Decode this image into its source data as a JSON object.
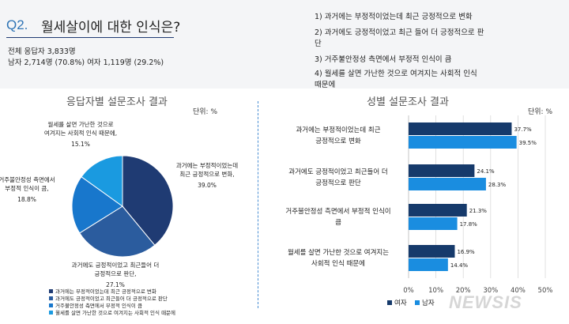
{
  "header": {
    "q_label": "Q2.",
    "q_text": "월세살이에 대한 인식은?",
    "total": "전체 응답자 3,833명",
    "gender": "남자 2,714명 (70.8%) 여자 1,119명 (29.2%)"
  },
  "options": [
    "1) 과거에는 부정적이었는데 최근 긍정적으로 변화",
    "2) 과거에도 긍정적이었고 최근 들어 더 긍정적으로 판",
    "단",
    "3) 거주불안정성 측면에서 부정적 인식이 큼",
    "4) 월세를 살면 가난한 것으로 여겨지는 사회적 인식",
    "때문에"
  ],
  "left_panel": {
    "title": "응답자별 설문조사 결과",
    "unit": "단위: %"
  },
  "right_panel": {
    "title": "성별 설문조사 결과",
    "unit": "단위: %"
  },
  "watermark": "NEWSIS",
  "colors": {
    "navy": "#1a2e5c",
    "c1": "#1f3b73",
    "c2": "#2b5c9e",
    "c3": "#1877cc",
    "c4": "#1a9ae0",
    "female": "#163a6b",
    "male": "#1a8de0"
  },
  "chart_data": [
    {
      "type": "pie",
      "title": "응답자별 설문조사 결과",
      "slices": [
        {
          "label_lines": [
            "과거에는 부정적이었는데",
            "최근 긍정적으로 변화,"
          ],
          "value": 39.0,
          "value_label": "39.0%"
        },
        {
          "label_lines": [
            "과거에도 긍정적이었고 최근들어 더",
            "긍정적으로 판단,"
          ],
          "value": 27.1,
          "value_label": "27.1%"
        },
        {
          "label_lines": [
            "거주불안정성 측면에서",
            "부정적 인식이 큼,"
          ],
          "value": 18.8,
          "value_label": "18.8%"
        },
        {
          "label_lines": [
            "월세를 살면 가난한 것으로",
            "여겨지는 사회적 인식 때문에,"
          ],
          "value": 15.1,
          "value_label": "15.1%"
        }
      ],
      "legend": [
        "과거에는 부정적이었는데 최근 긍정적으로 변화",
        "과거에도 긍정적이었고 최근들어 더 긍정적으로 판단",
        "거주불안정성 측면에서 부정적 인식이 큼",
        "월세를 살면 가난한 것으로 여겨지는 사회적 인식 때문에"
      ],
      "legend_position": "bottom"
    },
    {
      "type": "bar",
      "orientation": "horizontal",
      "title": "성별 설문조사 결과",
      "categories": [
        [
          "과거에는 부정적이었는데 최근",
          "긍정적으로 변화"
        ],
        [
          "과거에도 긍정적이었고 최근들어 더",
          "긍정적으로 판단"
        ],
        [
          "거주불안정성 측면에서 부정적 인식이",
          "큼"
        ],
        [
          "월세를 살면 가난한 것으로 여겨지는",
          "사회적 인식 때문에"
        ]
      ],
      "series": [
        {
          "name": "여자",
          "values": [
            37.7,
            24.1,
            21.3,
            16.9
          ],
          "value_labels": [
            "37.7%",
            "24.1%",
            "21.3%",
            "16.9%"
          ]
        },
        {
          "name": "남자",
          "values": [
            39.5,
            28.3,
            17.8,
            14.4
          ],
          "value_labels": [
            "39.5%",
            "28.3%",
            "17.8%",
            "14.4%"
          ]
        }
      ],
      "xlim": [
        0,
        50
      ],
      "ticks": [
        "0%",
        "10%",
        "20%",
        "30%",
        "40%",
        "50%"
      ],
      "tick_values": [
        0,
        10,
        20,
        30,
        40,
        50
      ],
      "grid": true,
      "legend_position": "bottom"
    }
  ]
}
